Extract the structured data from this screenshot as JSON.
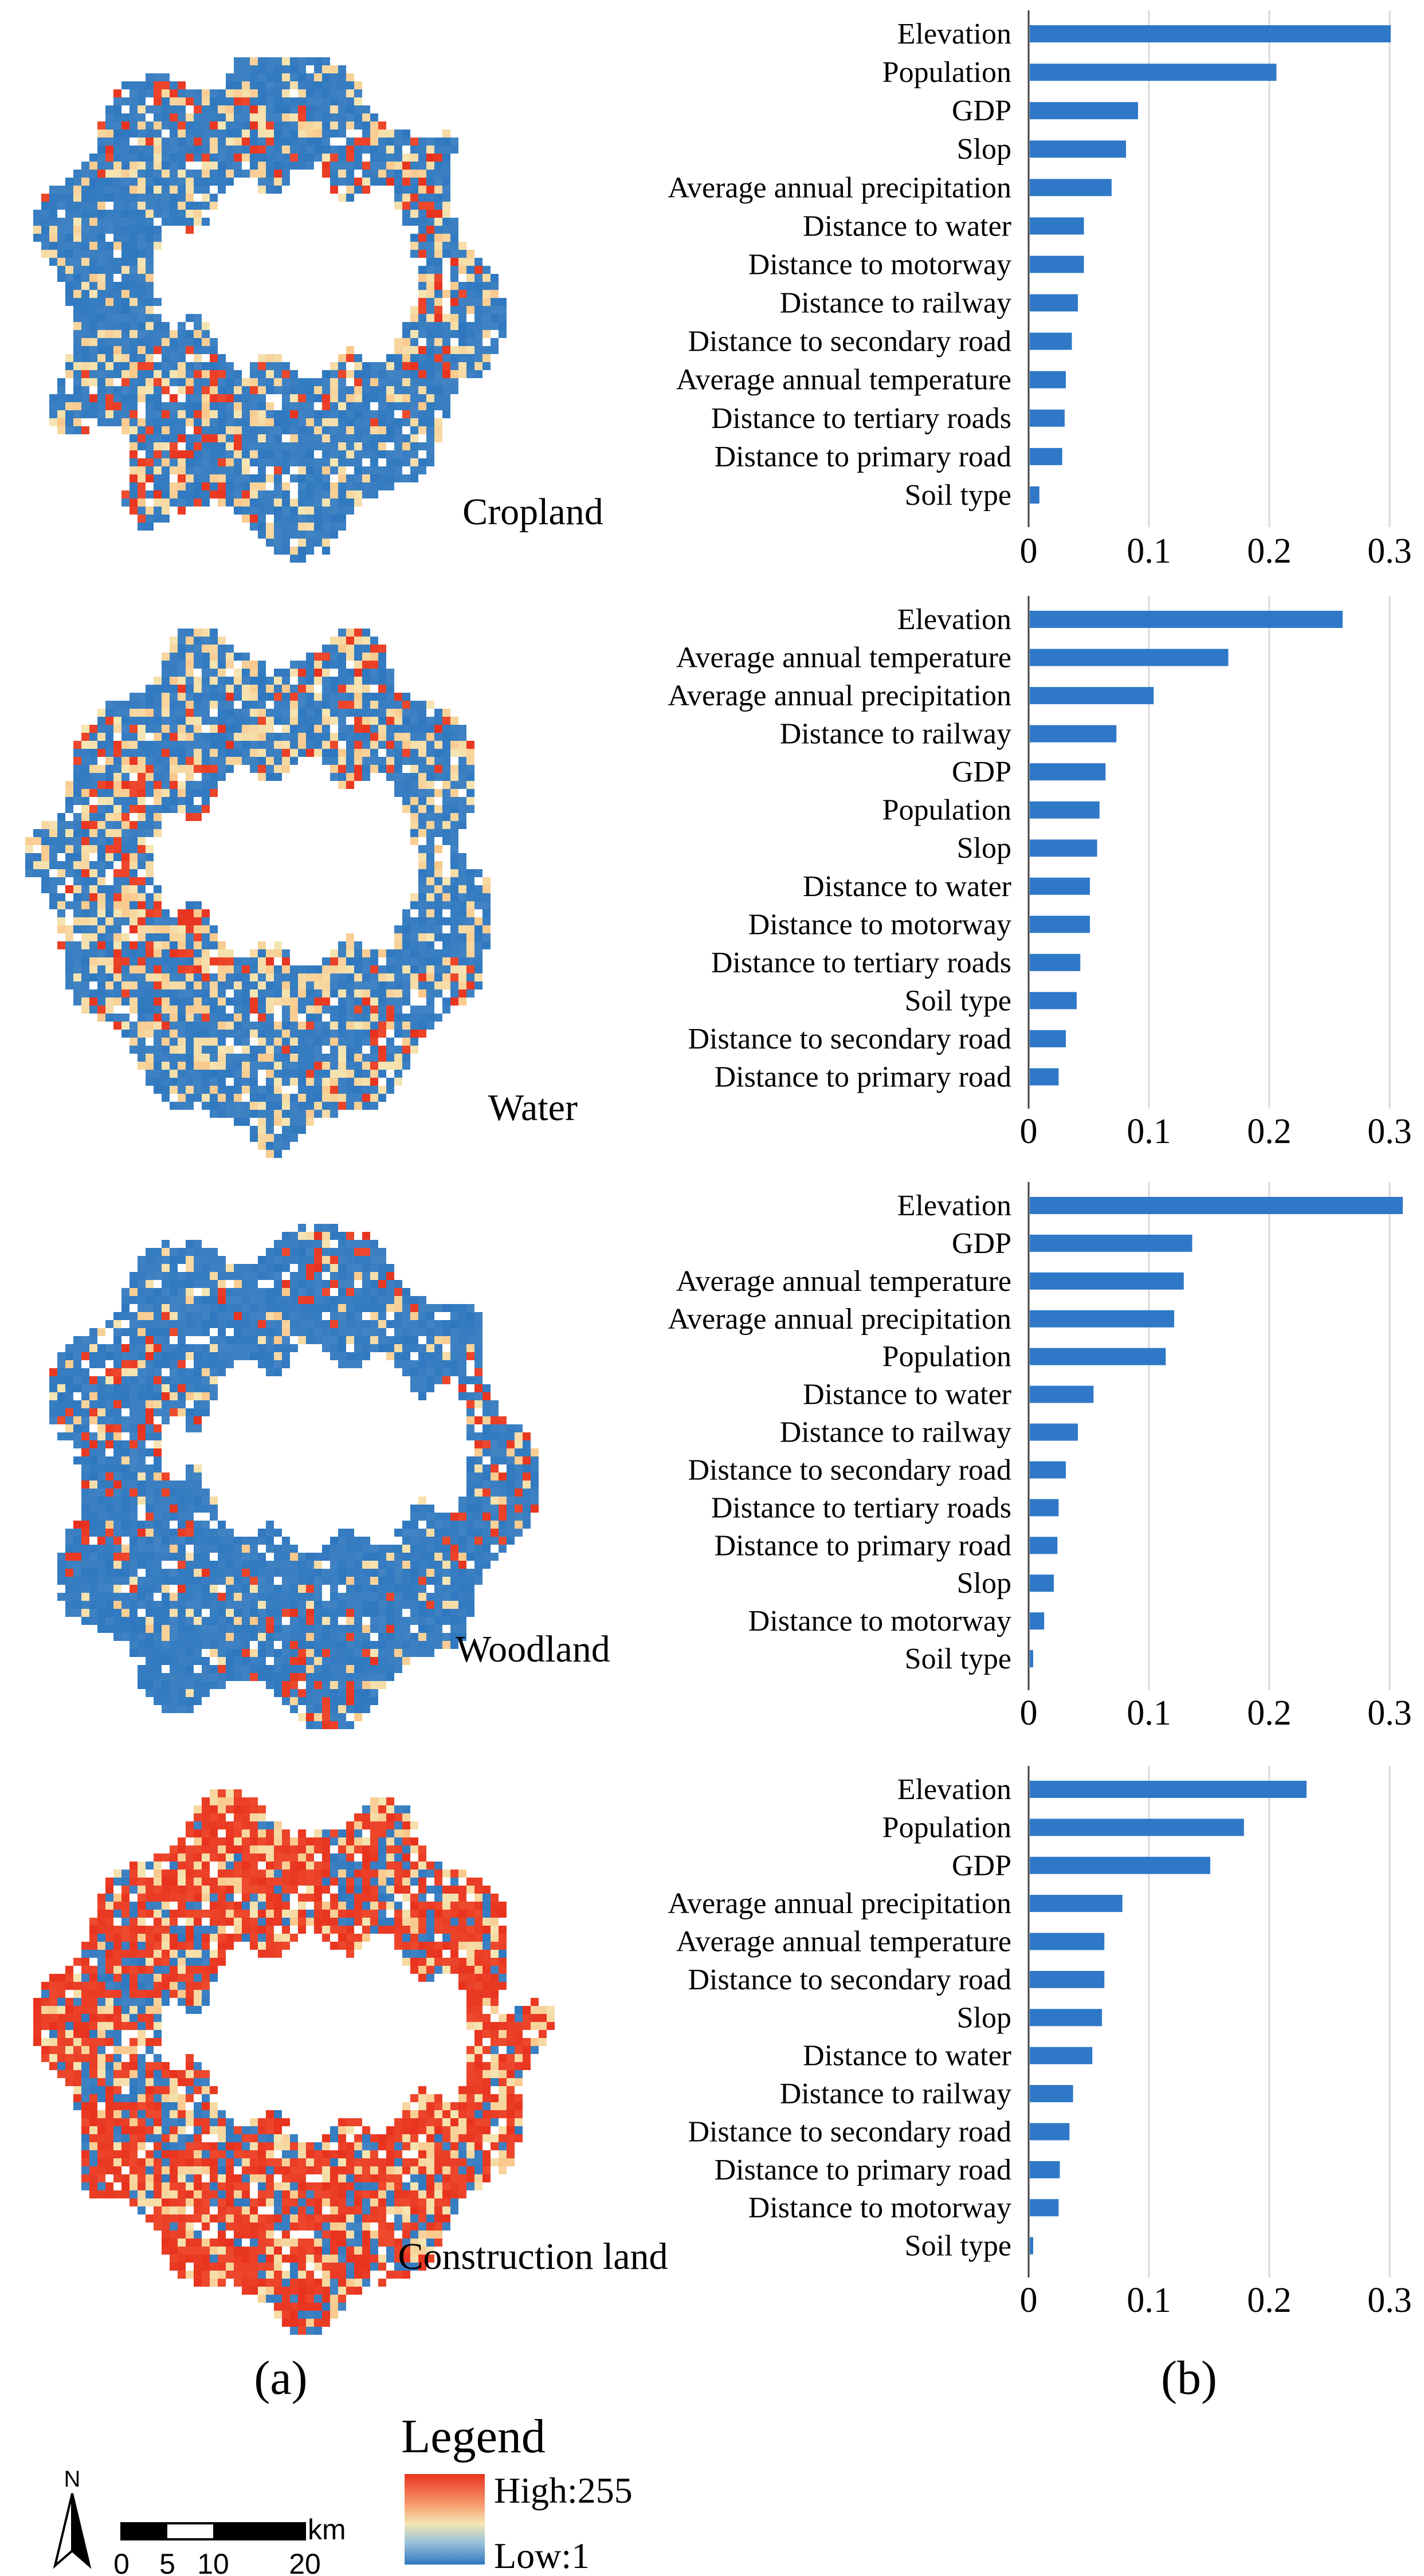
{
  "colors": {
    "bar": "#2f78c8",
    "gridline": "#d9d9d9",
    "map_low": "#2f78c0",
    "map_mid": "#f4e6b4",
    "map_high": "#e8321e"
  },
  "panel_labels": {
    "a": "(a)",
    "b": "(b)"
  },
  "legend": {
    "title": "Legend",
    "high": "High:255",
    "low": "Low:1",
    "north": "N",
    "scale_unit": "km",
    "scale_ticks": [
      "0",
      "5",
      "10",
      "20"
    ]
  },
  "maps": [
    {
      "label": "Cropland"
    },
    {
      "label": "Water"
    },
    {
      "label": "Woodland"
    },
    {
      "label": "Construction land"
    }
  ],
  "chart_data": [
    {
      "type": "bar",
      "orientation": "horizontal",
      "title": "Cropland",
      "categories": [
        "Elevation",
        "Population",
        "GDP",
        "Slop",
        "Average annual precipitation",
        "Distance to water",
        "Distance to motorway",
        "Distance to railway",
        "Distance to secondary road",
        "Average annual temperature",
        "Distance to tertiary roads",
        "Distance to primary road",
        "Soil type"
      ],
      "values": [
        0.3,
        0.205,
        0.09,
        0.08,
        0.068,
        0.045,
        0.045,
        0.04,
        0.035,
        0.03,
        0.029,
        0.027,
        0.008
      ],
      "xlim": [
        0,
        0.3
      ],
      "xticks": [
        "0",
        "0.1",
        "0.2",
        "0.3"
      ]
    },
    {
      "type": "bar",
      "orientation": "horizontal",
      "title": "Water",
      "categories": [
        "Elevation",
        "Average annual temperature",
        "Average annual precipitation",
        "Distance to railway",
        "GDP",
        "Population",
        "Slop",
        "Distance to water",
        "Distance to motorway",
        "Distance to tertiary roads",
        "Soil type",
        "Distance to secondary road",
        "Distance to primary road"
      ],
      "values": [
        0.26,
        0.165,
        0.103,
        0.072,
        0.063,
        0.058,
        0.056,
        0.05,
        0.05,
        0.042,
        0.039,
        0.03,
        0.024
      ],
      "xlim": [
        0,
        0.3
      ],
      "xticks": [
        "0",
        "0.1",
        "0.2",
        "0.3"
      ]
    },
    {
      "type": "bar",
      "orientation": "horizontal",
      "title": "Woodland",
      "categories": [
        "Elevation",
        "GDP",
        "Average annual temperature",
        "Average annual precipitation",
        "Population",
        "Distance to water",
        "Distance to railway",
        "Distance to secondary road",
        "Distance to tertiary roads",
        "Distance to primary road",
        "Slop",
        "Distance to motorway",
        "Soil type"
      ],
      "values": [
        0.31,
        0.135,
        0.128,
        0.12,
        0.113,
        0.053,
        0.04,
        0.03,
        0.024,
        0.023,
        0.02,
        0.012,
        0.002
      ],
      "xlim": [
        0,
        0.3
      ],
      "xticks": [
        "0",
        "0.1",
        "0.2",
        "0.3"
      ]
    },
    {
      "type": "bar",
      "orientation": "horizontal",
      "title": "Construction land",
      "categories": [
        "Elevation",
        "Population",
        "GDP",
        "Average annual precipitation",
        "Average annual temperature",
        "Distance to secondary road",
        "Slop",
        "Distance to water",
        "Distance to railway",
        "Distance to secondary road",
        "Distance to primary road",
        "Distance to motorway",
        "Soil type"
      ],
      "values": [
        0.23,
        0.178,
        0.15,
        0.077,
        0.062,
        0.062,
        0.06,
        0.052,
        0.036,
        0.033,
        0.025,
        0.024,
        0.002
      ],
      "xlim": [
        0,
        0.3
      ],
      "xticks": [
        "0",
        "0.1",
        "0.2",
        "0.3"
      ]
    }
  ]
}
